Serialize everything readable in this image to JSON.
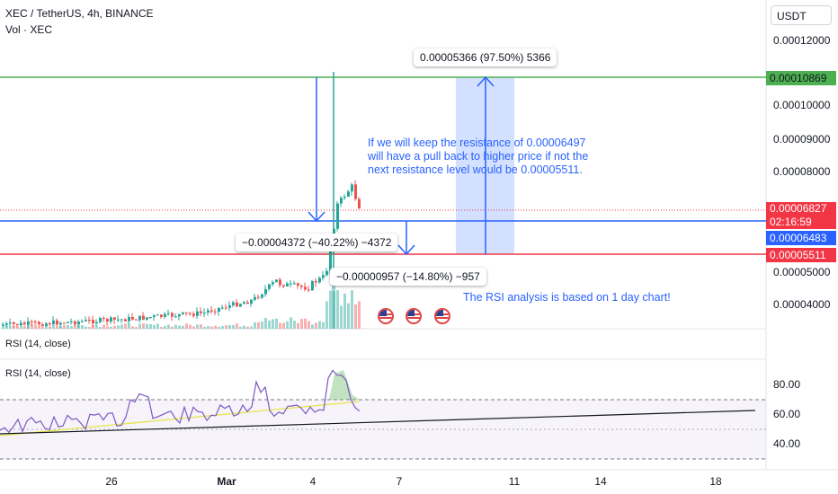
{
  "header": {
    "symbol_title": "XEC / TetherUS, 4h, BINANCE",
    "volume_label": "Vol · XEC",
    "currency": "USDT"
  },
  "price_axis": {
    "ticks": [
      "0.00012000",
      "0.00010000",
      "0.00009000",
      "0.00008000",
      "0.00005000",
      "0.00004000"
    ]
  },
  "price_tags": {
    "green_level": "0.00010869",
    "last_price": "0.00006827",
    "countdown": "02:16:59",
    "blue_level": "0.00006483",
    "red_level": "0.00005511"
  },
  "measurements": {
    "up": "0.00005366 (97.50%) 5366",
    "down_big": "−0.00004372 (−40.22%) −4372",
    "down_small": "−0.00000957 (−14.80%) −957"
  },
  "annotations": {
    "note_lines": [
      "If we will keep the resistance of 0.00006497",
      "will have a pull back to higher price if not the",
      "next resistance level would be 0.00005511."
    ],
    "rsi_note": "The RSI analysis is based on 1 day chart!"
  },
  "rsi": {
    "upper_label": "RSI (14, close)",
    "lower_label": "RSI (14, close)",
    "ticks": [
      "80.00",
      "60.00",
      "40.00"
    ]
  },
  "time_axis": {
    "ticks": [
      {
        "label": "26",
        "bold": false
      },
      {
        "label": "Mar",
        "bold": true
      },
      {
        "label": "4",
        "bold": false
      },
      {
        "label": "7",
        "bold": false
      },
      {
        "label": "11",
        "bold": false
      },
      {
        "label": "14",
        "bold": false
      },
      {
        "label": "18",
        "bold": false
      }
    ]
  },
  "colors": {
    "up_candle": "#26a69a",
    "down_candle": "#ef5350",
    "green_level": "#4caf50",
    "blue_level": "#2962ff",
    "red_level": "#f23645",
    "rsi_line": "#7e57c2",
    "rsi_ma": "#e6e64c"
  },
  "icons": [
    "us-flag-event-icon",
    "us-flag-event-icon",
    "us-flag-event-icon"
  ]
}
